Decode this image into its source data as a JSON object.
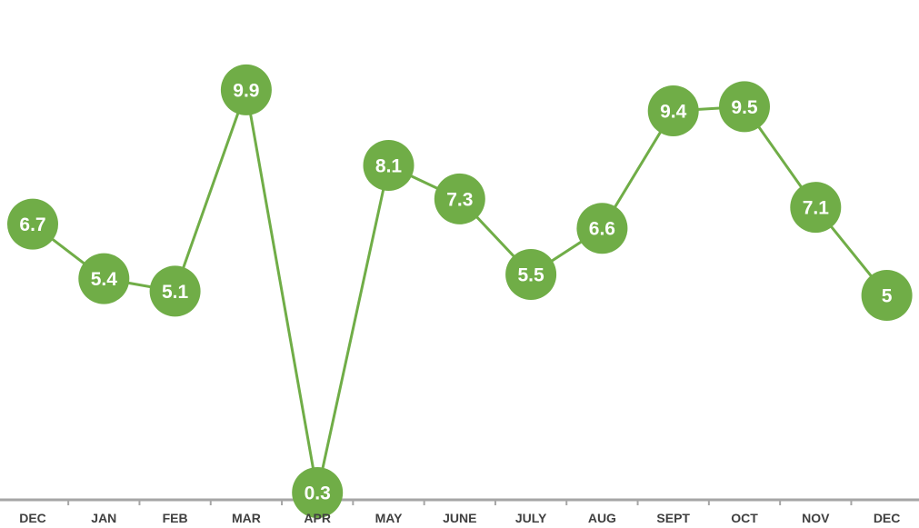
{
  "chart_data": {
    "type": "line",
    "categories": [
      "DEC",
      "JAN",
      "FEB",
      "MAR",
      "APR",
      "MAY",
      "JUNE",
      "JULY",
      "AUG",
      "SEPT",
      "OCT",
      "NOV",
      "DEC"
    ],
    "values": [
      6.7,
      5.4,
      5.1,
      9.9,
      0.3,
      8.1,
      7.3,
      5.5,
      6.6,
      9.4,
      9.5,
      7.1,
      5
    ],
    "data_labels": [
      "6.7",
      "5.4",
      "5.1",
      "9.9",
      "0.3",
      "8.1",
      "7.3",
      "5.5",
      "6.6",
      "9.4",
      "9.5",
      "7.1",
      "5"
    ],
    "title": "",
    "xlabel": "",
    "ylabel": "",
    "ylim": [
      0,
      10.5
    ],
    "grid": false,
    "legend": "none",
    "colors": {
      "series": "#70ad47",
      "label_text": "#ffffff",
      "axis": "#a6a6a6",
      "tick_text": "#404040"
    }
  }
}
